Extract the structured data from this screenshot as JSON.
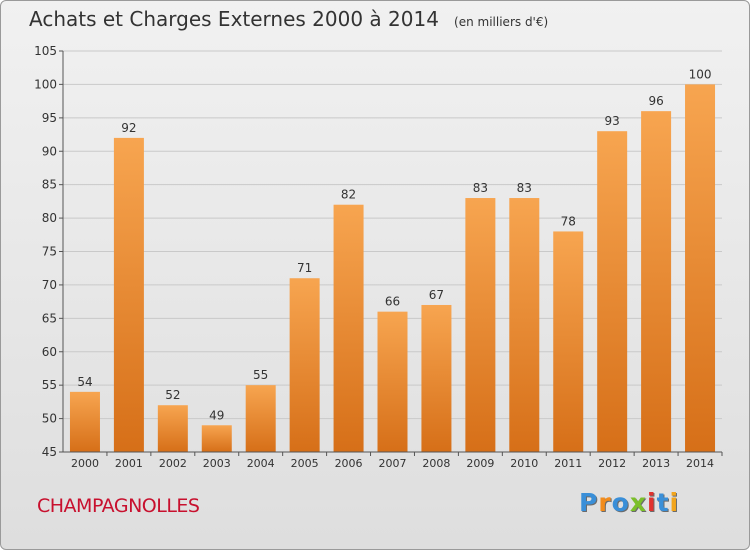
{
  "header": {
    "title": "Achats et Charges Externes 2000 à 2014",
    "unit": "(en milliers d'€)"
  },
  "footer": {
    "commune": "CHAMPAGNOLLES",
    "logo_letters": [
      "P",
      "r",
      "o",
      "x",
      "i",
      "t",
      "i"
    ],
    "logo_colors": [
      "#3a8fd8",
      "#f28c1c",
      "#3a8fd8",
      "#7bbf2a",
      "#e0322e",
      "#3a8fd8",
      "#f2a51c"
    ]
  },
  "colors": {
    "bar_top": "#f7a550",
    "bar_bottom": "#d66f18",
    "grid": "#c9c9c9",
    "text": "#333333",
    "brand": "#c8102e"
  },
  "chart_data": {
    "type": "bar",
    "categories": [
      "2000",
      "2001",
      "2002",
      "2003",
      "2004",
      "2005",
      "2006",
      "2007",
      "2008",
      "2009",
      "2010",
      "2011",
      "2012",
      "2013",
      "2014"
    ],
    "values": [
      54,
      92,
      52,
      49,
      55,
      71,
      82,
      66,
      67,
      83,
      83,
      78,
      93,
      96,
      100
    ],
    "ylim": [
      45,
      105
    ],
    "yticks": [
      45,
      50,
      55,
      60,
      65,
      70,
      75,
      80,
      85,
      90,
      95,
      100,
      105
    ],
    "grid": true
  }
}
